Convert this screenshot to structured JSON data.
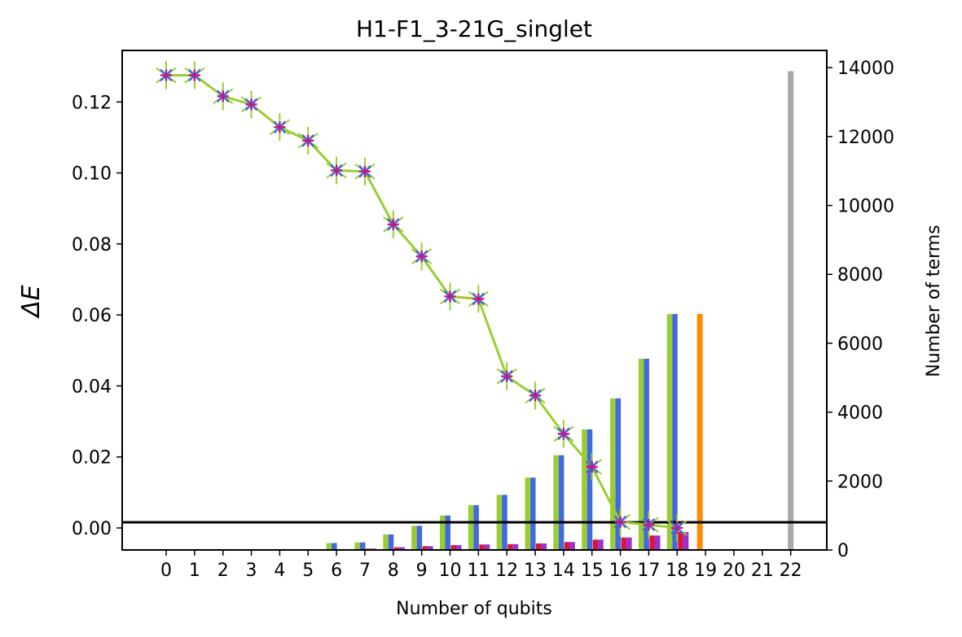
{
  "chart_data": {
    "type": "bar",
    "title": "H1-F1_3-21G_singlet",
    "xlabel": "Number of qubits",
    "ylabel_left": "ΔE",
    "ylabel_right": "Number of terms",
    "x": [
      0,
      1,
      2,
      3,
      4,
      5,
      6,
      7,
      8,
      9,
      10,
      11,
      12,
      13,
      14,
      15,
      16,
      17,
      18,
      19,
      20,
      21,
      22
    ],
    "x_tick_labels": [
      "0",
      "1",
      "2",
      "3",
      "4",
      "5",
      "6",
      "7",
      "8",
      "9",
      "10",
      "11",
      "12",
      "13",
      "14",
      "15",
      "16",
      "17",
      "18",
      "19",
      "20",
      "21",
      "22"
    ],
    "ylim_left": [
      -0.0062,
      0.1345
    ],
    "ylim_right": [
      0,
      14500
    ],
    "left_ticks": [
      0.0,
      0.02,
      0.04,
      0.06,
      0.08,
      0.1,
      0.12
    ],
    "left_tick_labels": [
      "0.00",
      "0.02",
      "0.04",
      "0.06",
      "0.08",
      "0.10",
      "0.12"
    ],
    "right_ticks": [
      0,
      2000,
      4000,
      6000,
      8000,
      10000,
      12000,
      14000
    ],
    "right_tick_labels": [
      "0",
      "2000",
      "4000",
      "6000",
      "8000",
      "10000",
      "12000",
      "14000"
    ],
    "energy_line": {
      "x": [
        0,
        1,
        2,
        3,
        4,
        5,
        6,
        7,
        8,
        9,
        10,
        11,
        12,
        13,
        14,
        15,
        16,
        17,
        18
      ],
      "y": [
        0.1275,
        0.1275,
        0.1216,
        0.1193,
        0.1129,
        0.1091,
        0.1007,
        0.1004,
        0.0855,
        0.0765,
        0.0652,
        0.0645,
        0.0427,
        0.0373,
        0.0265,
        0.0172,
        0.0017,
        0.0009,
        0.0
      ],
      "line_color": "#9ACD32",
      "marker_color_1": "#4169E1",
      "marker_color_2": "#C71585"
    },
    "reference_line": {
      "y": 0.0016,
      "color": "#000000"
    },
    "bar_series": [
      {
        "color": "#9ACD32",
        "x": [
          5,
          6,
          7,
          8,
          9,
          10,
          11,
          12,
          13,
          14,
          15,
          16,
          17,
          18
        ],
        "values": [
          20,
          200,
          220,
          450,
          700,
          1000,
          1300,
          1600,
          2100,
          2750,
          3500,
          4400,
          5550,
          6850
        ]
      },
      {
        "color": "#4169E1",
        "x": [
          5,
          6,
          7,
          8,
          9,
          10,
          11,
          12,
          13,
          14,
          15,
          16,
          17,
          18
        ],
        "values": [
          20,
          200,
          220,
          450,
          700,
          1000,
          1300,
          1600,
          2100,
          2750,
          3500,
          4400,
          5550,
          6850
        ]
      },
      {
        "color": "#DC143C",
        "x": [
          5,
          6,
          7,
          8,
          9,
          10,
          11,
          12,
          13,
          14,
          15,
          16,
          17,
          18
        ],
        "values": [
          0,
          20,
          40,
          80,
          110,
          140,
          160,
          170,
          190,
          230,
          300,
          360,
          420,
          520
        ]
      },
      {
        "color": "#9932CC",
        "x": [
          5,
          6,
          7,
          8,
          9,
          10,
          11,
          12,
          13,
          14,
          15,
          16,
          17,
          18
        ],
        "values": [
          0,
          20,
          40,
          80,
          110,
          140,
          160,
          170,
          190,
          230,
          300,
          360,
          420,
          520
        ]
      }
    ],
    "single_bars": [
      {
        "color": "#FF8C00",
        "x": 18.8,
        "value": 6850
      },
      {
        "color": "#AAAAAA",
        "x": 22.0,
        "value": 13900
      }
    ]
  }
}
